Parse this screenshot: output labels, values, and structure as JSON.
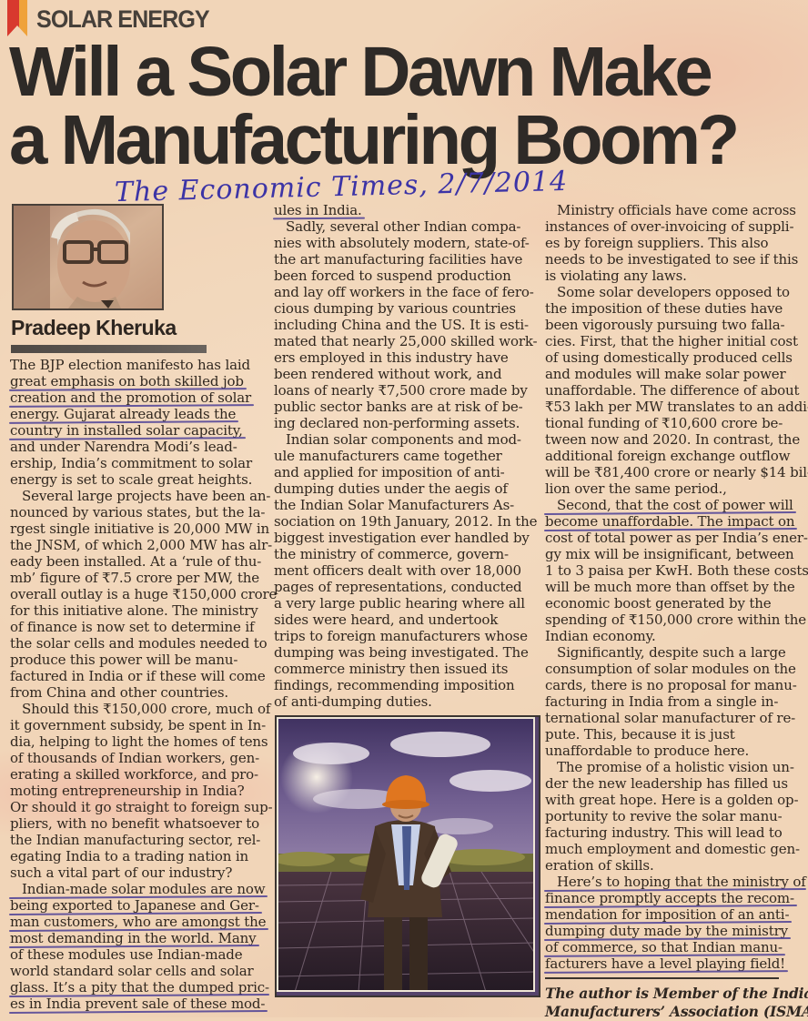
{
  "kicker": {
    "label": "SOLAR ENERGY",
    "ribbon_red": "#d8392e",
    "ribbon_orange": "#efa23a"
  },
  "headline": {
    "line1": "Will a Solar Dawn Make",
    "line2": "a Manufacturing Boom?"
  },
  "annotation": {
    "text": "The Economic Times, 2/7/2014",
    "ink_color": "#3c34a6"
  },
  "byline": {
    "name": "Pradeep Kheruka"
  },
  "author_photo": {
    "description": "Portrait of the author wearing glasses"
  },
  "main_photo": {
    "description": "Man in suit and orange hard hat holding rolled plans in a solar panel field under a cloudy sky"
  },
  "pen_marks": {
    "underline_color": "#3e3294"
  },
  "article": {
    "columns": [
      {
        "blocks": [
          {
            "indent": false,
            "lines": [
              {
                "t": "The BJP election manifesto has laid"
              },
              {
                "t": "great emphasis on both skilled job",
                "u": true
              },
              {
                "t": "creation and the promotion of  solar",
                "u": true
              },
              {
                "t": "energy. Gujarat already leads the",
                "u": true
              },
              {
                "t": "country in installed solar capacity,",
                "u": true
              },
              {
                "t": "and under Narendra Modi’s lead-"
              },
              {
                "t": "ership, India’s commitment to solar"
              },
              {
                "t": "energy is set to scale great heights."
              }
            ]
          },
          {
            "indent": true,
            "lines": [
              {
                "t": "Several large projects have been an-"
              },
              {
                "t": "nounced by various states, but the la-"
              },
              {
                "t": "rgest single initiative is 20,000 MW in"
              },
              {
                "t": "the JNSM, of  which 2,000 MW has alr-"
              },
              {
                "t": "eady been installed. At a ‘rule of thu-"
              },
              {
                "t": "mb’ figure of  ₹7.5 crore per MW, the"
              },
              {
                "t": "overall outlay is a huge ₹150,000 crore"
              },
              {
                "t": "for this initiative alone. The ministry"
              },
              {
                "t": "of  finance is now set to determine if"
              },
              {
                "t": "the solar cells and modules needed to"
              },
              {
                "t": "produce this power will be manu-"
              },
              {
                "t": "factured in India or if  these will come"
              },
              {
                "t": "from China and other countries."
              }
            ]
          },
          {
            "indent": true,
            "lines": [
              {
                "t": "Should this ₹150,000 crore, much of"
              },
              {
                "t": "it government subsidy, be spent in In-"
              },
              {
                "t": "dia, helping to light the homes of  tens"
              },
              {
                "t": "of  thousands of  Indian workers, gen-"
              },
              {
                "t": "erating a skilled workforce, and pro-"
              },
              {
                "t": "moting entrepreneurship in India?"
              },
              {
                "t": "Or should it go straight to foreign sup-"
              },
              {
                "t": "pliers, with no benefit whatsoever to"
              },
              {
                "t": "the Indian manufacturing sector, rel-"
              },
              {
                "t": "egating India to a trading nation in"
              },
              {
                "t": "such a vital part of  our industry?"
              }
            ]
          },
          {
            "indent": true,
            "lines": [
              {
                "t": "Indian-made solar modules are now",
                "u": true
              },
              {
                "t": "being exported to Japanese and Ger-",
                "u": true
              },
              {
                "t": "man customers, who are amongst the",
                "u": true
              },
              {
                "t": "most demanding in the world. Many",
                "u": true
              },
              {
                "t": "of  these modules use Indian-made"
              },
              {
                "t": "world standard solar cells and solar"
              },
              {
                "t": "glass. It’s a pity that the dumped pric-",
                "u": true
              },
              {
                "t": "es in India prevent sale of  these mod-",
                "u": true
              }
            ]
          }
        ]
      },
      {
        "blocks": [
          {
            "indent": false,
            "lines": [
              {
                "t": "ules in India.",
                "u": true
              }
            ]
          },
          {
            "indent": true,
            "lines": [
              {
                "t": "Sadly, several other Indian compa-"
              },
              {
                "t": "nies with absolutely modern, state-of-"
              },
              {
                "t": "the art manufacturing facilities have"
              },
              {
                "t": "been forced to suspend production"
              },
              {
                "t": "and lay off  workers in the face of  fero-"
              },
              {
                "t": "cious dumping by various countries"
              },
              {
                "t": "including China and the US. It is esti-"
              },
              {
                "t": "mated that nearly 25,000 skilled work-"
              },
              {
                "t": "ers employed in this industry have"
              },
              {
                "t": "been rendered without work, and"
              },
              {
                "t": "loans of  nearly ₹7,500 crore made by"
              },
              {
                "t": "public sector banks are at risk of  be-"
              },
              {
                "t": "ing declared non-performing assets."
              }
            ]
          },
          {
            "indent": true,
            "lines": [
              {
                "t": "Indian solar components and mod-"
              },
              {
                "t": "ule manufacturers came together"
              },
              {
                "t": "and applied for imposition of  anti-"
              },
              {
                "t": "dumping duties under the aegis of"
              },
              {
                "t": "the Indian Solar Manufacturers As-"
              },
              {
                "t": "sociation on 19th January, 2012. In the"
              },
              {
                "t": "biggest investigation ever handled by"
              },
              {
                "t": "the ministry of  commerce, govern-"
              },
              {
                "t": "ment officers dealt with over 18,000"
              },
              {
                "t": "pages of  representations, conducted"
              },
              {
                "t": "a very large public hearing where all"
              },
              {
                "t": "sides were heard, and undertook"
              },
              {
                "t": "trips to foreign manufacturers whose"
              },
              {
                "t": "dumping was being investigated. The"
              },
              {
                "t": "commerce ministry then issued its"
              },
              {
                "t": "findings, recommending imposition"
              },
              {
                "t": "of  anti-dumping duties."
              }
            ]
          }
        ]
      },
      {
        "blocks": [
          {
            "indent": true,
            "lines": [
              {
                "t": "Ministry officials have come across"
              },
              {
                "t": "instances of  over-invoicing of  suppli-"
              },
              {
                "t": "es by foreign suppliers. This also"
              },
              {
                "t": "needs to be investigated to see if  this"
              },
              {
                "t": "is violating any laws."
              }
            ]
          },
          {
            "indent": true,
            "lines": [
              {
                "t": "Some solar developers opposed to"
              },
              {
                "t": "the imposition of  these duties have"
              },
              {
                "t": "been vigorously pursuing two falla-"
              },
              {
                "t": "cies. First, that the higher initial cost"
              },
              {
                "t": "of  using domestically produced cells"
              },
              {
                "t": "and modules will make solar power"
              },
              {
                "t": "unaffordable. The difference of  about"
              },
              {
                "t": "₹53 lakh per MW translates to an addi-"
              },
              {
                "t": "tional funding of  ₹10,600 crore be-"
              },
              {
                "t": "tween now and 2020. In contrast, the"
              },
              {
                "t": "additional foreign exchange outflow"
              },
              {
                "t": "will be ₹81,400 crore or nearly $14 bil-"
              },
              {
                "t": "lion over the same period.,"
              }
            ]
          },
          {
            "indent": true,
            "lines": [
              {
                "t": "Second, that the cost of  power will",
                "u": true
              },
              {
                "t": "become unaffordable. The impact on",
                "u": true
              },
              {
                "t": "cost of  total power as per India’s ener-"
              },
              {
                "t": "gy mix will be insignificant, between"
              },
              {
                "t": "1 to 3 paisa per KwH. Both these costs"
              },
              {
                "t": "will be much more than offset by the"
              },
              {
                "t": "economic boost generated by the"
              },
              {
                "t": "spending of  ₹150,000 crore within the"
              },
              {
                "t": "Indian economy."
              }
            ]
          },
          {
            "indent": true,
            "lines": [
              {
                "t": "Significantly, despite such a large"
              },
              {
                "t": "consumption of  solar modules on the"
              },
              {
                "t": "cards, there is no proposal for manu-"
              },
              {
                "t": "facturing in India from a single in-"
              },
              {
                "t": "ternational solar manufacturer of  re-"
              },
              {
                "t": "pute. This, because it is just"
              },
              {
                "t": "unaffordable to produce here."
              }
            ]
          },
          {
            "indent": true,
            "lines": [
              {
                "t": "The promise of  a holistic vision un-"
              },
              {
                "t": "der the new leadership has filled us"
              },
              {
                "t": "with great hope. Here is a golden op-"
              },
              {
                "t": "portunity to revive the solar manu-"
              },
              {
                "t": "facturing industry. This will lead to"
              },
              {
                "t": "much employment and domestic gen-"
              },
              {
                "t": "eration of  skills."
              }
            ]
          },
          {
            "indent": true,
            "lines": [
              {
                "t": "Here’s to hoping that the ministry of",
                "u": true
              },
              {
                "t": "finance promptly accepts the recom-",
                "u": true
              },
              {
                "t": "mendation for imposition of  an anti-",
                "u": true
              },
              {
                "t": "dumping duty made by the ministry",
                "u": true
              },
              {
                "t": "of  commerce, so that Indian manu-",
                "u": true
              },
              {
                "t": "facturers have a level playing field!",
                "u": true
              }
            ]
          }
        ]
      }
    ]
  },
  "footer": {
    "lines": [
      "The author is Member of  the Indian Solar",
      "Manufacturers’ Association (ISMA)"
    ]
  }
}
